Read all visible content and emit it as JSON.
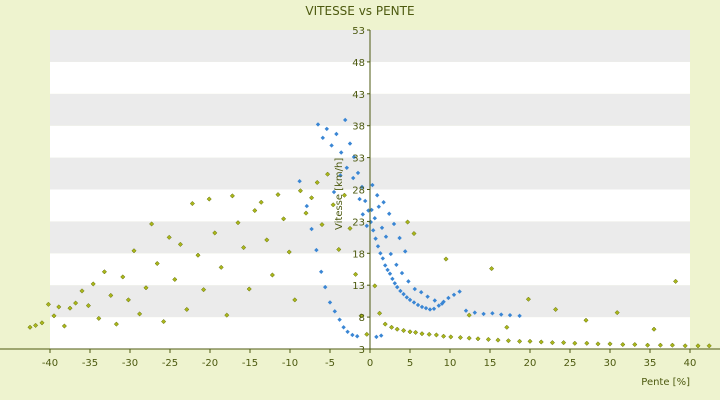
{
  "colors": {
    "page_background": "#eef3cf",
    "band_light": "#ffffff",
    "band_dark": "#ebebeb",
    "axis": "#4d5a10",
    "text": "#4d5a10",
    "series_climb": "#3a86d4",
    "series_general": "#aab61b"
  },
  "chart_data": {
    "type": "scatter",
    "title": "VITESSE vs PENTE",
    "xlabel": "Pente [%]",
    "ylabel": "Vitesse [km/h]",
    "xlim": [
      -40,
      40
    ],
    "ylim": [
      3,
      53
    ],
    "x_ticks": [
      "-40",
      "-35",
      "-30",
      "-25",
      "-20",
      "-15",
      "-10",
      "-5",
      "0",
      "5",
      "10",
      "15",
      "20",
      "25",
      "30",
      "35",
      "40"
    ],
    "y_ticks": [
      "3",
      "8",
      "13",
      "18",
      "23",
      "28",
      "33",
      "38",
      "43",
      "48",
      "53"
    ],
    "grid": "alternating horizontal bands",
    "legend": "none",
    "series": [
      {
        "color": "#aab61b",
        "marker": "small diamond",
        "values": [
          [
            -42.5,
            6.4
          ],
          [
            -41.8,
            6.7
          ],
          [
            -41.0,
            7.1
          ],
          [
            -40.2,
            10.0
          ],
          [
            -39.5,
            8.2
          ],
          [
            -38.9,
            9.6
          ],
          [
            -38.2,
            6.6
          ],
          [
            -37.5,
            9.4
          ],
          [
            -36.8,
            10.2
          ],
          [
            -36.0,
            12.1
          ],
          [
            -35.2,
            9.8
          ],
          [
            -34.6,
            13.2
          ],
          [
            -33.9,
            7.8
          ],
          [
            -33.2,
            15.1
          ],
          [
            -32.4,
            11.4
          ],
          [
            -31.7,
            6.9
          ],
          [
            -30.9,
            14.3
          ],
          [
            -30.2,
            10.7
          ],
          [
            -29.5,
            18.4
          ],
          [
            -28.8,
            8.5
          ],
          [
            -28.0,
            12.6
          ],
          [
            -27.3,
            22.6
          ],
          [
            -26.6,
            16.4
          ],
          [
            -25.8,
            7.3
          ],
          [
            -25.1,
            20.5
          ],
          [
            -24.4,
            13.9
          ],
          [
            -23.7,
            19.4
          ],
          [
            -22.9,
            9.2
          ],
          [
            -22.2,
            25.8
          ],
          [
            -21.5,
            17.7
          ],
          [
            -20.8,
            12.3
          ],
          [
            -20.1,
            26.5
          ],
          [
            -19.4,
            21.2
          ],
          [
            -18.6,
            15.8
          ],
          [
            -17.9,
            8.3
          ],
          [
            -17.2,
            27.0
          ],
          [
            -16.5,
            22.8
          ],
          [
            -15.8,
            18.9
          ],
          [
            -15.1,
            12.4
          ],
          [
            -14.4,
            24.7
          ],
          [
            -13.6,
            26.0
          ],
          [
            -12.9,
            20.1
          ],
          [
            -12.2,
            14.6
          ],
          [
            -11.5,
            27.2
          ],
          [
            -10.8,
            23.4
          ],
          [
            -10.1,
            18.2
          ],
          [
            -9.4,
            10.7
          ],
          [
            -8.7,
            27.8
          ],
          [
            -8.0,
            24.3
          ],
          [
            -7.3,
            26.7
          ],
          [
            -6.6,
            29.1
          ],
          [
            -6.0,
            22.5
          ],
          [
            -5.3,
            30.4
          ],
          [
            -4.6,
            25.6
          ],
          [
            -3.9,
            18.6
          ],
          [
            -3.2,
            27.1
          ],
          [
            -2.5,
            21.9
          ],
          [
            -1.8,
            14.7
          ],
          [
            -1.1,
            8.2
          ],
          [
            -0.4,
            5.3
          ],
          [
            0.6,
            12.9
          ],
          [
            1.2,
            8.6
          ],
          [
            1.9,
            6.9
          ],
          [
            2.7,
            6.4
          ],
          [
            3.4,
            6.1
          ],
          [
            4.2,
            5.9
          ],
          [
            5.0,
            5.7
          ],
          [
            5.7,
            5.6
          ],
          [
            6.5,
            5.4
          ],
          [
            7.4,
            5.3
          ],
          [
            8.3,
            5.2
          ],
          [
            9.2,
            5.0
          ],
          [
            10.1,
            4.9
          ],
          [
            11.3,
            4.8
          ],
          [
            12.4,
            4.7
          ],
          [
            13.5,
            4.6
          ],
          [
            14.8,
            4.5
          ],
          [
            16.0,
            4.4
          ],
          [
            17.3,
            4.3
          ],
          [
            18.7,
            4.2
          ],
          [
            20.0,
            4.2
          ],
          [
            21.4,
            4.1
          ],
          [
            22.8,
            4.0
          ],
          [
            24.2,
            4.0
          ],
          [
            25.6,
            3.9
          ],
          [
            27.1,
            3.9
          ],
          [
            28.5,
            3.8
          ],
          [
            30.0,
            3.8
          ],
          [
            31.6,
            3.7
          ],
          [
            33.1,
            3.7
          ],
          [
            34.7,
            3.6
          ],
          [
            36.3,
            3.6
          ],
          [
            37.8,
            3.6
          ],
          [
            39.4,
            3.5
          ],
          [
            41.0,
            3.5
          ],
          [
            42.4,
            3.5
          ],
          [
            4.7,
            22.9
          ],
          [
            5.5,
            21.1
          ],
          [
            9.5,
            17.1
          ],
          [
            23.2,
            9.2
          ],
          [
            30.9,
            8.7
          ],
          [
            38.2,
            13.6
          ],
          [
            15.2,
            15.6
          ],
          [
            19.8,
            10.8
          ],
          [
            27.0,
            7.5
          ],
          [
            35.5,
            6.1
          ],
          [
            12.4,
            8.3
          ],
          [
            17.1,
            6.4
          ]
        ]
      },
      {
        "color": "#3a86d4",
        "marker": "small diamond",
        "values": [
          [
            -6.5,
            38.2
          ],
          [
            -5.9,
            36.1
          ],
          [
            -5.4,
            37.5
          ],
          [
            -4.8,
            34.9
          ],
          [
            -4.2,
            36.7
          ],
          [
            -3.6,
            33.8
          ],
          [
            -3.1,
            38.9
          ],
          [
            -2.5,
            35.2
          ],
          [
            -2.0,
            33.1
          ],
          [
            -1.5,
            30.6
          ],
          [
            -1.0,
            28.4
          ],
          [
            -0.6,
            26.2
          ],
          [
            -0.2,
            24.7
          ],
          [
            0.1,
            22.9
          ],
          [
            0.4,
            21.6
          ],
          [
            0.7,
            20.3
          ],
          [
            1.0,
            19.1
          ],
          [
            1.3,
            18.0
          ],
          [
            1.6,
            17.2
          ],
          [
            1.9,
            16.1
          ],
          [
            2.2,
            15.4
          ],
          [
            2.5,
            14.8
          ],
          [
            2.8,
            14.0
          ],
          [
            3.1,
            13.3
          ],
          [
            3.4,
            12.7
          ],
          [
            3.8,
            12.1
          ],
          [
            4.2,
            11.6
          ],
          [
            4.6,
            11.1
          ],
          [
            5.0,
            10.7
          ],
          [
            5.5,
            10.3
          ],
          [
            6.0,
            9.9
          ],
          [
            6.5,
            9.6
          ],
          [
            7.0,
            9.4
          ],
          [
            7.5,
            9.2
          ],
          [
            8.0,
            9.3
          ],
          [
            8.6,
            9.8
          ],
          [
            9.2,
            10.4
          ],
          [
            9.8,
            11.0
          ],
          [
            10.5,
            11.5
          ],
          [
            11.2,
            12.0
          ],
          [
            -8.8,
            29.3
          ],
          [
            -7.9,
            25.4
          ],
          [
            -7.3,
            21.8
          ],
          [
            -6.7,
            18.5
          ],
          [
            -6.1,
            15.1
          ],
          [
            -5.6,
            12.7
          ],
          [
            -5.0,
            10.3
          ],
          [
            -4.4,
            8.9
          ],
          [
            -3.8,
            7.6
          ],
          [
            -3.3,
            6.4
          ],
          [
            -0.9,
            24.1
          ],
          [
            -0.4,
            22.3
          ],
          [
            0.2,
            24.8
          ],
          [
            0.6,
            23.5
          ],
          [
            1.1,
            25.3
          ],
          [
            1.5,
            22.0
          ],
          [
            2.0,
            20.6
          ],
          [
            2.6,
            17.9
          ],
          [
            3.3,
            16.2
          ],
          [
            4.0,
            14.9
          ],
          [
            4.8,
            13.6
          ],
          [
            5.6,
            12.4
          ],
          [
            6.4,
            11.9
          ],
          [
            7.2,
            11.2
          ],
          [
            8.1,
            10.6
          ],
          [
            9.0,
            10.1
          ],
          [
            12.0,
            9.0
          ],
          [
            13.1,
            8.7
          ],
          [
            14.2,
            8.5
          ],
          [
            15.3,
            8.6
          ],
          [
            16.4,
            8.4
          ],
          [
            17.5,
            8.3
          ],
          [
            18.7,
            8.2
          ],
          [
            -2.8,
            5.7
          ],
          [
            -2.2,
            5.2
          ],
          [
            -1.6,
            5.0
          ],
          [
            0.8,
            4.9
          ],
          [
            1.4,
            5.1
          ],
          [
            0.3,
            28.7
          ],
          [
            0.9,
            27.1
          ],
          [
            1.7,
            26.0
          ],
          [
            2.4,
            24.2
          ],
          [
            3.0,
            22.6
          ],
          [
            3.7,
            20.4
          ],
          [
            4.4,
            18.3
          ],
          [
            -1.3,
            26.5
          ],
          [
            -2.1,
            29.8
          ],
          [
            -2.9,
            31.4
          ],
          [
            -3.7,
            30.2
          ],
          [
            -4.5,
            27.6
          ]
        ]
      }
    ]
  }
}
